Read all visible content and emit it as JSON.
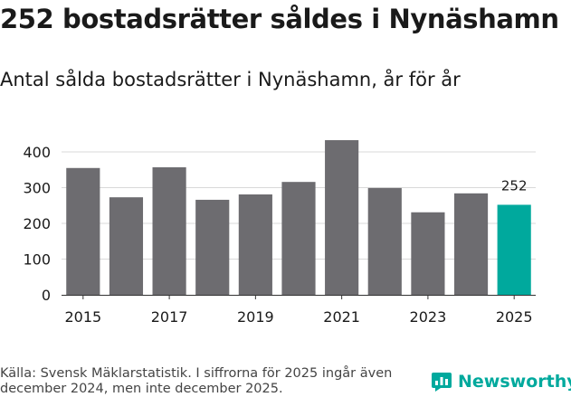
{
  "title": "252 bostadsrätter såldes i Nynäshamn",
  "subtitle": "Antal sålda bostadsrätter i Nynäshamn, år för år",
  "footer": {
    "source": "Källa: Svensk Mäklarstatistik. I siffrorna för 2025 ingår även december 2024, men inte december 2025."
  },
  "logo": {
    "text": "Newsworthy",
    "icon": "newsworthy-logo-icon",
    "color": "#00a99d"
  },
  "colors": {
    "bar": "#6d6c70",
    "highlight": "#00a99d",
    "grid": "#d9d9d9",
    "axis": "#333333"
  },
  "chart_data": {
    "type": "bar",
    "categories": [
      "2015",
      "2016",
      "2017",
      "2018",
      "2019",
      "2020",
      "2021",
      "2022",
      "2023",
      "2024",
      "2025"
    ],
    "values": [
      355,
      273,
      357,
      266,
      281,
      316,
      433,
      299,
      231,
      284,
      252
    ],
    "x_tick_labels": [
      "2015",
      "",
      "2017",
      "",
      "2019",
      "",
      "2021",
      "",
      "2023",
      "",
      "2025"
    ],
    "highlight_category": "2025",
    "data_labels": {
      "2025": "252"
    },
    "yticks": [
      0,
      100,
      200,
      300,
      400
    ],
    "ylim": [
      0,
      450
    ],
    "grid": true,
    "title": "252 bostadsrätter såldes i Nynäshamn",
    "xlabel": "",
    "ylabel": ""
  }
}
